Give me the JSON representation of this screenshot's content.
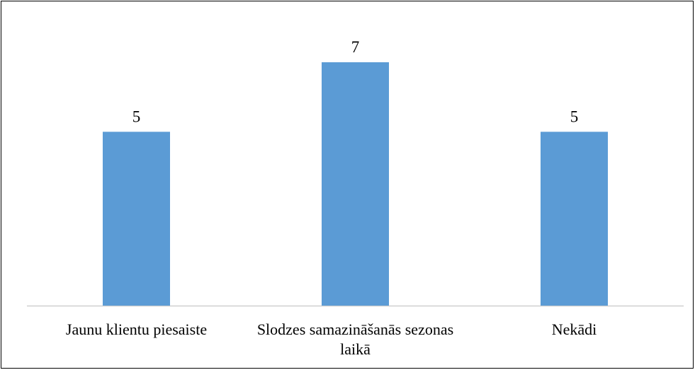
{
  "chart_data": {
    "type": "bar",
    "categories": [
      "Jaunu klientu piesaiste",
      "Slodzes samazināšanās sezonas laikā",
      "Nekādi"
    ],
    "values": [
      5,
      7,
      5
    ],
    "color": "#5b9bd5",
    "data_labels": true
  }
}
